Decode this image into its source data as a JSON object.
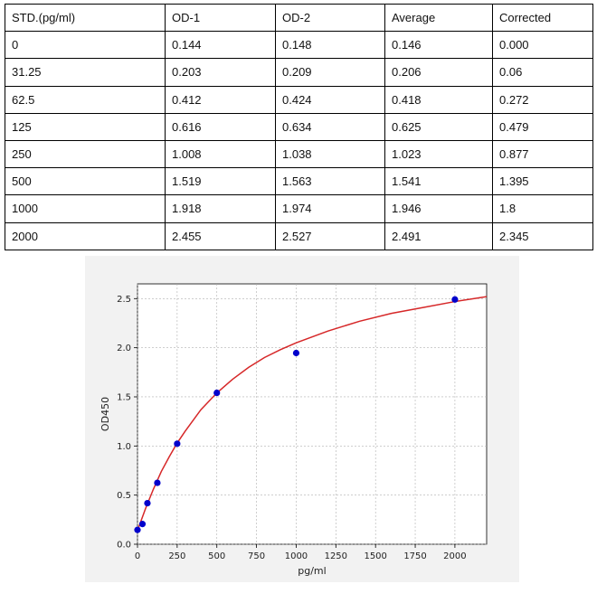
{
  "table": {
    "headers": [
      "STD.(pg/ml)",
      "OD-1",
      "OD-2",
      "Average",
      "Corrected"
    ],
    "rows": [
      [
        "0",
        "0.144",
        "0.148",
        "0.146",
        "0.000"
      ],
      [
        "31.25",
        "0.203",
        "0.209",
        "0.206",
        "0.06"
      ],
      [
        "62.5",
        "0.412",
        "0.424",
        "0.418",
        "0.272"
      ],
      [
        "125",
        "0.616",
        "0.634",
        "0.625",
        "0.479"
      ],
      [
        "250",
        "1.008",
        "1.038",
        "1.023",
        "0.877"
      ],
      [
        "500",
        "1.519",
        "1.563",
        "1.541",
        "1.395"
      ],
      [
        "1000",
        "1.918",
        "1.974",
        "1.946",
        "1.8"
      ],
      [
        "2000",
        "2.455",
        "2.527",
        "2.491",
        "2.345"
      ]
    ]
  },
  "chart_data": {
    "type": "scatter",
    "title": "",
    "xlabel": "pg/ml",
    "ylabel": "OD450",
    "xlim": [
      0,
      2200
    ],
    "ylim": [
      0,
      2.65
    ],
    "xticks": [
      0,
      250,
      500,
      750,
      1000,
      1250,
      1500,
      1750,
      2000
    ],
    "yticks": [
      0.0,
      0.5,
      1.0,
      1.5,
      2.0,
      2.5
    ],
    "xtick_labels": [
      "0",
      "250",
      "500",
      "750",
      "1000",
      "1250",
      "1500",
      "1750",
      "2000"
    ],
    "ytick_labels": [
      "0.0",
      "0.5",
      "1.0",
      "1.5",
      "2.0",
      "2.5"
    ],
    "grid": true,
    "points": [
      {
        "x": 0,
        "y": 0.146
      },
      {
        "x": 31.25,
        "y": 0.206
      },
      {
        "x": 62.5,
        "y": 0.418
      },
      {
        "x": 125,
        "y": 0.625
      },
      {
        "x": 250,
        "y": 1.023
      },
      {
        "x": 500,
        "y": 1.541
      },
      {
        "x": 1000,
        "y": 1.946
      },
      {
        "x": 2000,
        "y": 2.491
      }
    ],
    "fit_curve": {
      "x": [
        0,
        25,
        50,
        75,
        100,
        150,
        200,
        250,
        300,
        400,
        500,
        600,
        700,
        800,
        900,
        1000,
        1200,
        1400,
        1600,
        1800,
        2000,
        2200
      ],
      "y": [
        0.14,
        0.25,
        0.36,
        0.46,
        0.56,
        0.74,
        0.89,
        1.03,
        1.15,
        1.37,
        1.54,
        1.68,
        1.8,
        1.9,
        1.98,
        2.05,
        2.17,
        2.27,
        2.35,
        2.41,
        2.47,
        2.52
      ]
    },
    "colors": {
      "points": "#0000cc",
      "curve": "#d62728",
      "grid": "#b0b0b0",
      "panel": "#f2f2f2",
      "plot_bg": "#ffffff"
    }
  }
}
